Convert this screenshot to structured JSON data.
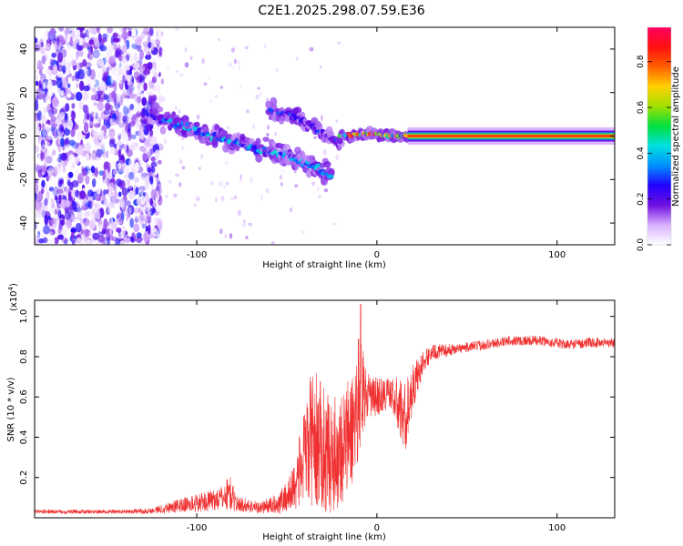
{
  "title": "C2E1.2025.298.07.59.E36",
  "chart_data": [
    {
      "type": "heatmap",
      "name": "spectrogram",
      "xlabel": "Height of straight line (km)",
      "ylabel": "Frequency (Hz)",
      "xlim": [
        -190,
        132
      ],
      "ylim": [
        -50,
        50
      ],
      "x_ticks": [
        -100,
        0,
        100
      ],
      "y_ticks": [
        -40,
        -20,
        0,
        20,
        40
      ],
      "colorbar": {
        "label": "Normalized spectral amplitude",
        "range": [
          0,
          0.95
        ],
        "ticks": [
          0,
          0.2,
          0.4,
          0.6,
          0.8
        ],
        "tick_labels": [
          "0.0",
          "0.2",
          "0.4",
          "0.6",
          "0.8"
        ],
        "colors": [
          "#ffffff",
          "#d8b0ff",
          "#7010e0",
          "#2000ff",
          "#0090ff",
          "#00e0e0",
          "#00e040",
          "#a0e000",
          "#ffd000",
          "#ff6000",
          "#ff1010",
          "#ff0060"
        ]
      },
      "features": [
        {
          "name": "noise-region",
          "x_range": [
            -190,
            -120
          ],
          "freq_range": [
            -50,
            50
          ],
          "level": 0.3
        },
        {
          "name": "descending-branch",
          "points": [
            {
              "x": -127,
              "y": 10
            },
            {
              "x": -110,
              "y": 5
            },
            {
              "x": -95,
              "y": 1
            },
            {
              "x": -80,
              "y": -3
            },
            {
              "x": -65,
              "y": -6
            },
            {
              "x": -50,
              "y": -9
            },
            {
              "x": -40,
              "y": -12
            },
            {
              "x": -30,
              "y": -16
            },
            {
              "x": -25,
              "y": -19
            }
          ]
        },
        {
          "name": "upper-branch",
          "points": [
            {
              "x": -60,
              "y": 12
            },
            {
              "x": -50,
              "y": 10
            },
            {
              "x": -40,
              "y": 7
            },
            {
              "x": -32,
              "y": 3
            },
            {
              "x": -25,
              "y": -1
            },
            {
              "x": -20,
              "y": -3
            }
          ]
        },
        {
          "name": "converging-branch",
          "points": [
            {
              "x": -20,
              "y": 0
            },
            {
              "x": -5,
              "y": 1
            },
            {
              "x": 10,
              "y": 0
            },
            {
              "x": 17,
              "y": 0
            }
          ]
        },
        {
          "name": "stable-line",
          "x_range": [
            17,
            132
          ],
          "freq": 0,
          "half_width_hz": 2.5
        }
      ]
    },
    {
      "type": "line",
      "name": "snr",
      "xlabel": "Height of straight line (km)",
      "ylabel": "SNR (10 * v/v)",
      "multiplier_label": "(x10",
      "multiplier_exp": "4",
      "multiplier_close": ")",
      "xlim": [
        -190,
        132
      ],
      "ylim": [
        0,
        1.08
      ],
      "x_ticks": [
        -100,
        0,
        100
      ],
      "y_ticks": [
        0.2,
        0.4,
        0.6,
        0.8,
        1
      ],
      "y_tick_labels": [
        "0.2",
        "0.4",
        "0.6",
        "0.8",
        "1.0"
      ],
      "line_color": "#f03030",
      "series": [
        {
          "name": "SNR",
          "envelope": [
            {
              "x": -190,
              "mean": 0.03,
              "spread": 0.01
            },
            {
              "x": -140,
              "mean": 0.03,
              "spread": 0.01
            },
            {
              "x": -125,
              "mean": 0.035,
              "spread": 0.015
            },
            {
              "x": -110,
              "mean": 0.06,
              "spread": 0.035
            },
            {
              "x": -95,
              "mean": 0.08,
              "spread": 0.05
            },
            {
              "x": -85,
              "mean": 0.1,
              "spread": 0.06
            },
            {
              "x": -82,
              "mean": 0.13,
              "spread": 0.1
            },
            {
              "x": -78,
              "mean": 0.07,
              "spread": 0.04
            },
            {
              "x": -65,
              "mean": 0.05,
              "spread": 0.03
            },
            {
              "x": -55,
              "mean": 0.07,
              "spread": 0.05
            },
            {
              "x": -48,
              "mean": 0.12,
              "spread": 0.1
            },
            {
              "x": -42,
              "mean": 0.25,
              "spread": 0.2
            },
            {
              "x": -36,
              "mean": 0.4,
              "spread": 0.35
            },
            {
              "x": -30,
              "mean": 0.35,
              "spread": 0.32
            },
            {
              "x": -25,
              "mean": 0.3,
              "spread": 0.28
            },
            {
              "x": -20,
              "mean": 0.35,
              "spread": 0.3
            },
            {
              "x": -15,
              "mean": 0.4,
              "spread": 0.3
            },
            {
              "x": -12,
              "mean": 0.5,
              "spread": 0.3
            },
            {
              "x": -9,
              "mean": 0.7,
              "spread": 0.33
            },
            {
              "x": -6,
              "mean": 0.6,
              "spread": 0.12
            },
            {
              "x": 0,
              "mean": 0.6,
              "spread": 0.1
            },
            {
              "x": 8,
              "mean": 0.62,
              "spread": 0.08
            },
            {
              "x": 12,
              "mean": 0.55,
              "spread": 0.15
            },
            {
              "x": 16,
              "mean": 0.5,
              "spread": 0.18
            },
            {
              "x": 20,
              "mean": 0.65,
              "spread": 0.12
            },
            {
              "x": 25,
              "mean": 0.76,
              "spread": 0.06
            },
            {
              "x": 30,
              "mean": 0.82,
              "spread": 0.04
            },
            {
              "x": 45,
              "mean": 0.84,
              "spread": 0.025
            },
            {
              "x": 60,
              "mean": 0.86,
              "spread": 0.025
            },
            {
              "x": 75,
              "mean": 0.88,
              "spread": 0.025
            },
            {
              "x": 90,
              "mean": 0.88,
              "spread": 0.025
            },
            {
              "x": 105,
              "mean": 0.86,
              "spread": 0.025
            },
            {
              "x": 120,
              "mean": 0.87,
              "spread": 0.025
            },
            {
              "x": 132,
              "mean": 0.87,
              "spread": 0.025
            }
          ],
          "peak": {
            "x": -9,
            "y": 1.06
          }
        }
      ]
    }
  ]
}
